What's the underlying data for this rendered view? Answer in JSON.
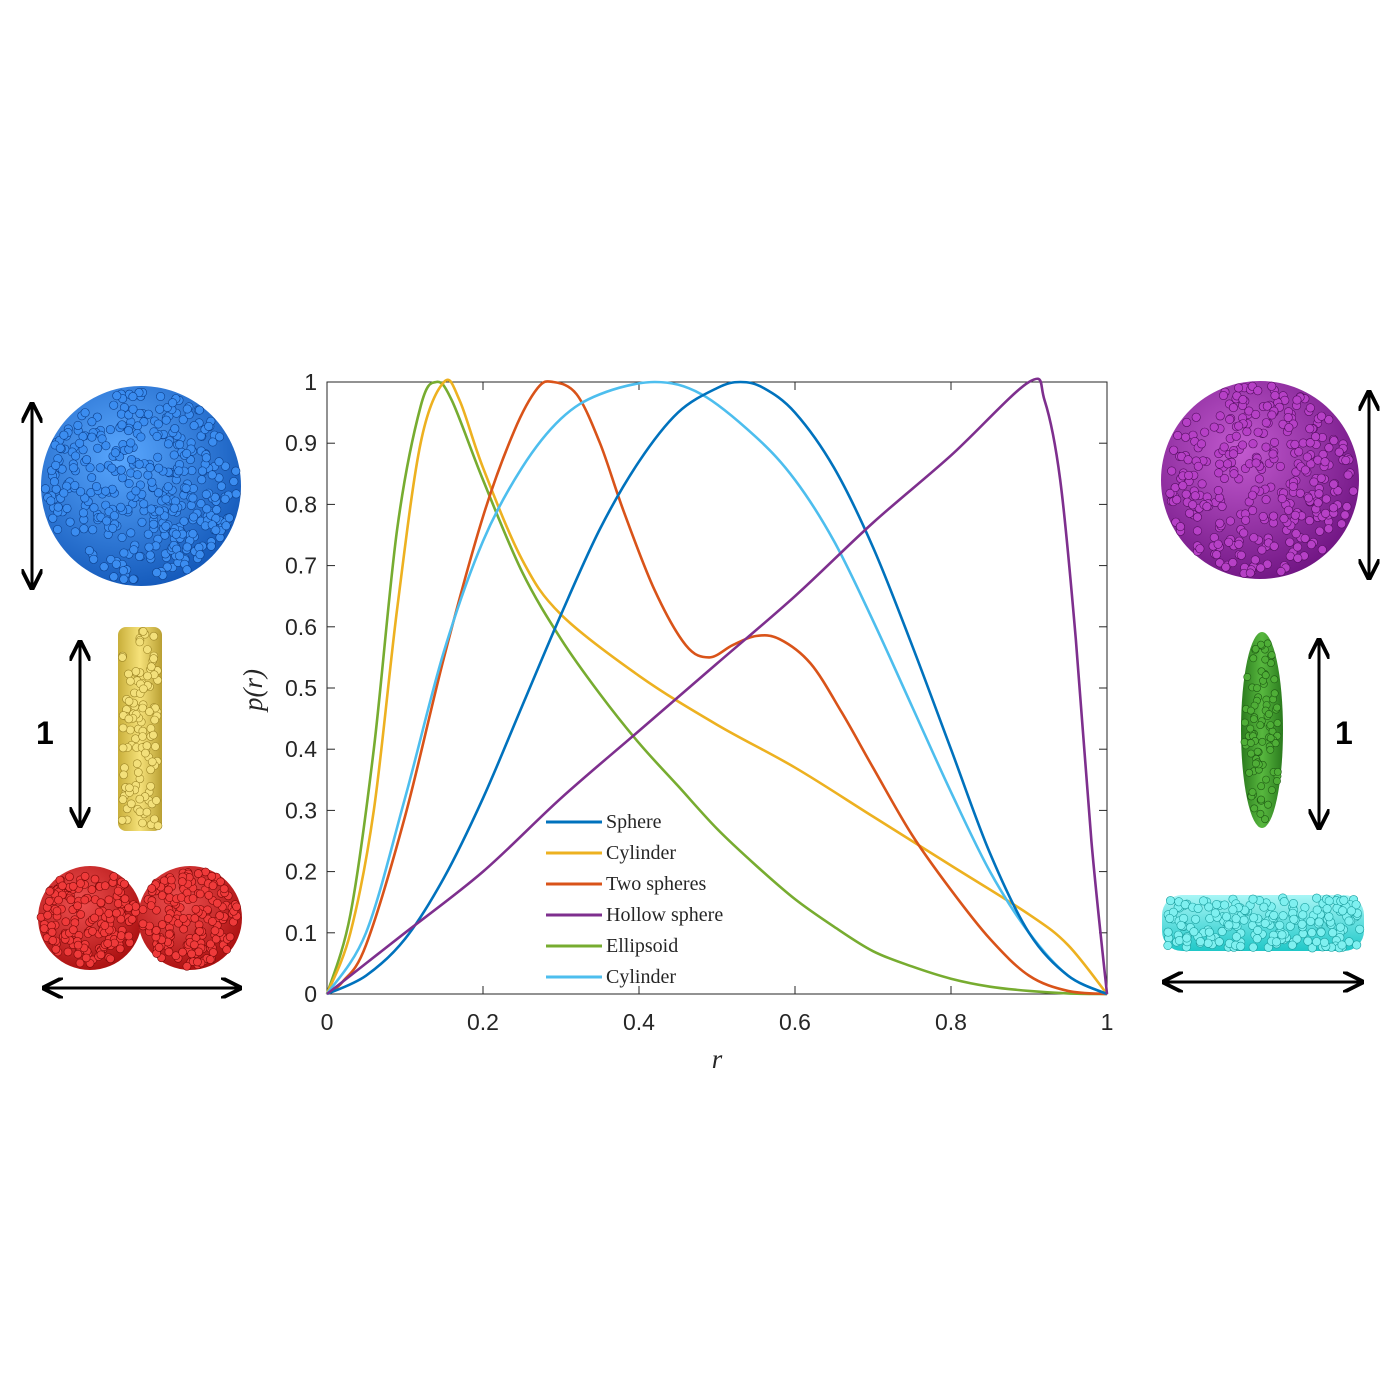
{
  "chart_data": {
    "type": "line",
    "xlabel": "r",
    "ylabel": "p(r)",
    "xlim": [
      0,
      1
    ],
    "ylim": [
      0,
      1
    ],
    "xticks": [
      "0",
      "0.2",
      "0.4",
      "0.6",
      "0.8",
      "1"
    ],
    "yticks": [
      "0",
      "0.1",
      "0.2",
      "0.3",
      "0.4",
      "0.5",
      "0.6",
      "0.7",
      "0.8",
      "0.9",
      "1"
    ],
    "legend_position": "bottom-center",
    "grid": false,
    "series": [
      {
        "name": "Sphere",
        "color": "#0072BD",
        "points": [
          [
            0,
            0
          ],
          [
            0.05,
            0.03
          ],
          [
            0.1,
            0.09
          ],
          [
            0.15,
            0.19
          ],
          [
            0.2,
            0.32
          ],
          [
            0.25,
            0.47
          ],
          [
            0.3,
            0.62
          ],
          [
            0.35,
            0.76
          ],
          [
            0.4,
            0.87
          ],
          [
            0.45,
            0.95
          ],
          [
            0.5,
            0.99
          ],
          [
            0.53,
            1.0
          ],
          [
            0.56,
            0.99
          ],
          [
            0.6,
            0.95
          ],
          [
            0.65,
            0.86
          ],
          [
            0.7,
            0.73
          ],
          [
            0.75,
            0.57
          ],
          [
            0.8,
            0.4
          ],
          [
            0.85,
            0.23
          ],
          [
            0.9,
            0.1
          ],
          [
            0.95,
            0.03
          ],
          [
            1,
            0
          ]
        ]
      },
      {
        "name": "Cylinder",
        "color": "#EDB120",
        "points": [
          [
            0,
            0
          ],
          [
            0.03,
            0.1
          ],
          [
            0.06,
            0.3
          ],
          [
            0.09,
            0.63
          ],
          [
            0.12,
            0.9
          ],
          [
            0.15,
            1.0
          ],
          [
            0.17,
            0.97
          ],
          [
            0.2,
            0.86
          ],
          [
            0.25,
            0.71
          ],
          [
            0.3,
            0.62
          ],
          [
            0.4,
            0.52
          ],
          [
            0.5,
            0.44
          ],
          [
            0.6,
            0.37
          ],
          [
            0.7,
            0.29
          ],
          [
            0.8,
            0.21
          ],
          [
            0.9,
            0.13
          ],
          [
            0.95,
            0.08
          ],
          [
            1,
            0
          ]
        ]
      },
      {
        "name": "Two spheres",
        "color": "#D95319",
        "points": [
          [
            0,
            0
          ],
          [
            0.02,
            0.02
          ],
          [
            0.05,
            0.08
          ],
          [
            0.1,
            0.29
          ],
          [
            0.15,
            0.55
          ],
          [
            0.2,
            0.78
          ],
          [
            0.24,
            0.92
          ],
          [
            0.27,
            0.99
          ],
          [
            0.29,
            1.0
          ],
          [
            0.32,
            0.98
          ],
          [
            0.35,
            0.9
          ],
          [
            0.38,
            0.79
          ],
          [
            0.42,
            0.66
          ],
          [
            0.46,
            0.57
          ],
          [
            0.49,
            0.55
          ],
          [
            0.52,
            0.57
          ],
          [
            0.55,
            0.585
          ],
          [
            0.58,
            0.58
          ],
          [
            0.62,
            0.54
          ],
          [
            0.66,
            0.46
          ],
          [
            0.7,
            0.37
          ],
          [
            0.75,
            0.26
          ],
          [
            0.8,
            0.17
          ],
          [
            0.85,
            0.09
          ],
          [
            0.9,
            0.03
          ],
          [
            0.95,
            0.005
          ],
          [
            1,
            0
          ]
        ]
      },
      {
        "name": "Hollow sphere",
        "color": "#7E2F8E",
        "points": [
          [
            0,
            0
          ],
          [
            0.05,
            0.05
          ],
          [
            0.1,
            0.1
          ],
          [
            0.2,
            0.2
          ],
          [
            0.3,
            0.32
          ],
          [
            0.4,
            0.43
          ],
          [
            0.5,
            0.54
          ],
          [
            0.6,
            0.65
          ],
          [
            0.7,
            0.77
          ],
          [
            0.8,
            0.88
          ],
          [
            0.9,
            1.0
          ],
          [
            0.92,
            0.97
          ],
          [
            0.94,
            0.84
          ],
          [
            0.96,
            0.58
          ],
          [
            0.98,
            0.25
          ],
          [
            1,
            0
          ]
        ]
      },
      {
        "name": "Ellipsoid",
        "color": "#77AC30",
        "points": [
          [
            0,
            0
          ],
          [
            0.03,
            0.13
          ],
          [
            0.06,
            0.4
          ],
          [
            0.09,
            0.76
          ],
          [
            0.12,
            0.96
          ],
          [
            0.14,
            1.0
          ],
          [
            0.16,
            0.97
          ],
          [
            0.2,
            0.84
          ],
          [
            0.25,
            0.69
          ],
          [
            0.3,
            0.58
          ],
          [
            0.35,
            0.49
          ],
          [
            0.4,
            0.41
          ],
          [
            0.45,
            0.34
          ],
          [
            0.5,
            0.27
          ],
          [
            0.55,
            0.21
          ],
          [
            0.6,
            0.155
          ],
          [
            0.65,
            0.11
          ],
          [
            0.7,
            0.07
          ],
          [
            0.75,
            0.045
          ],
          [
            0.8,
            0.025
          ],
          [
            0.85,
            0.012
          ],
          [
            0.9,
            0.005
          ],
          [
            0.95,
            0.001
          ],
          [
            1,
            0
          ]
        ]
      },
      {
        "name": "Cylinder",
        "color": "#4DBEEE",
        "points": [
          [
            0,
            0
          ],
          [
            0.05,
            0.1
          ],
          [
            0.1,
            0.32
          ],
          [
            0.15,
            0.56
          ],
          [
            0.2,
            0.74
          ],
          [
            0.25,
            0.86
          ],
          [
            0.3,
            0.94
          ],
          [
            0.35,
            0.98
          ],
          [
            0.42,
            1.0
          ],
          [
            0.48,
            0.98
          ],
          [
            0.55,
            0.91
          ],
          [
            0.6,
            0.84
          ],
          [
            0.65,
            0.74
          ],
          [
            0.7,
            0.61
          ],
          [
            0.75,
            0.47
          ],
          [
            0.8,
            0.33
          ],
          [
            0.85,
            0.2
          ],
          [
            0.9,
            0.1
          ],
          [
            0.95,
            0.03
          ],
          [
            1,
            0
          ]
        ]
      }
    ]
  },
  "annotations": {
    "left_dimension_label": "1",
    "right_dimension_label": "1"
  },
  "shapes": {
    "sphere_color": "#1f6fd6",
    "rod_color": "#e8d45a",
    "two_spheres_color": "#d51a1a",
    "hollow_sphere_color": "#8f1e9a",
    "ellipsoid_color": "#3f9a2b",
    "disk_color": "#37e3e3"
  }
}
